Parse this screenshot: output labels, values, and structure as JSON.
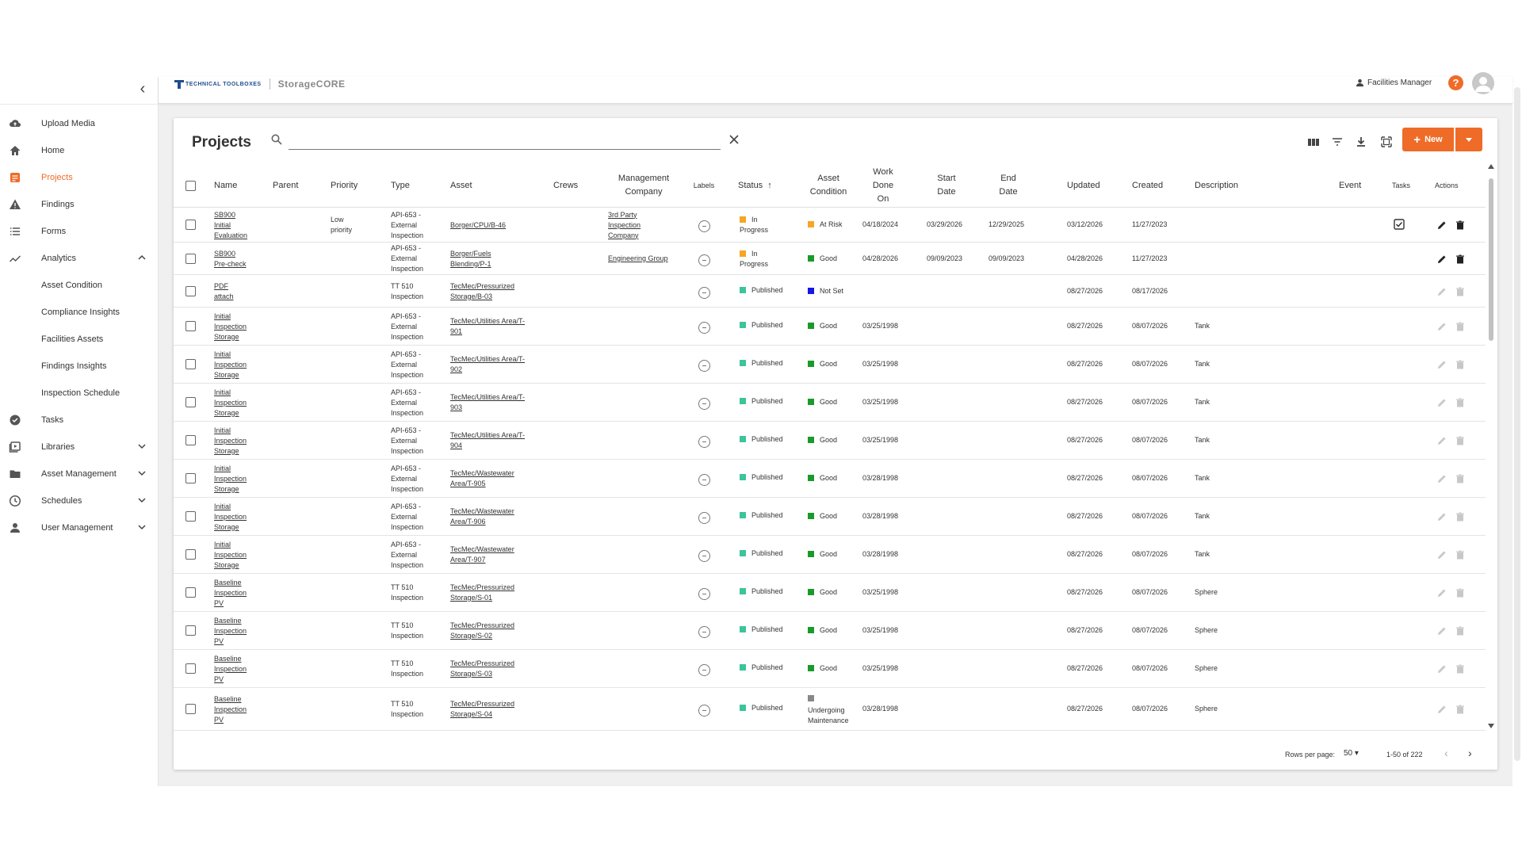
{
  "app": {
    "brand_mark": "TECHNICAL TOOLBOXES",
    "product": "StorageCORE"
  },
  "header": {
    "user_name": "Facilities Manager",
    "help_label": "?"
  },
  "sidebar": {
    "items": [
      {
        "label": "Upload Media",
        "icon": "cloud-upload-icon",
        "name": "upload-media"
      },
      {
        "label": "Home",
        "icon": "home-icon",
        "name": "home"
      },
      {
        "label": "Projects",
        "icon": "projects-icon",
        "name": "projects",
        "active": true
      },
      {
        "label": "Findings",
        "icon": "warning-icon",
        "name": "findings"
      },
      {
        "label": "Forms",
        "icon": "list-icon",
        "name": "forms"
      },
      {
        "label": "Analytics",
        "icon": "trend-icon",
        "name": "analytics",
        "expanded": true
      },
      {
        "label": "Asset Condition",
        "name": "asset-condition",
        "sub": true
      },
      {
        "label": "Compliance Insights",
        "name": "compliance-insights",
        "sub": true
      },
      {
        "label": "Facilities Assets",
        "name": "facilities-assets",
        "sub": true
      },
      {
        "label": "Findings Insights",
        "name": "findings-insights",
        "sub": true
      },
      {
        "label": "Inspection Schedule",
        "name": "inspection-schedule",
        "sub": true
      },
      {
        "label": "Tasks",
        "icon": "check-circle-icon",
        "name": "tasks"
      },
      {
        "label": "Libraries",
        "icon": "video-library-icon",
        "name": "libraries",
        "collapsible": true
      },
      {
        "label": "Asset Management",
        "icon": "folder-icon",
        "name": "asset-management",
        "collapsible": true
      },
      {
        "label": "Schedules",
        "icon": "clock-icon",
        "name": "schedules",
        "collapsible": true
      },
      {
        "label": "User Management",
        "icon": "person-icon",
        "name": "user-management",
        "collapsible": true
      }
    ]
  },
  "projects": {
    "title": "Projects",
    "search_placeholder": "",
    "new_label": "New",
    "columns": {
      "name": "Name",
      "parent": "Parent",
      "priority": "Priority",
      "type": "Type",
      "asset": "Asset",
      "crews": "Crews",
      "mgmt1": "Management",
      "mgmt2": "Company",
      "labels": "Labels",
      "status": "Status",
      "cond1": "Asset",
      "cond2": "Condition",
      "wdo1": "Work",
      "wdo2": "Done",
      "wdo3": "On",
      "start1": "Start",
      "start2": "Date",
      "end1": "End",
      "end2": "Date",
      "updated": "Updated",
      "created": "Created",
      "description": "Description",
      "event": "Event",
      "tasks": "Tasks",
      "actions": "Actions"
    },
    "rows": [
      {
        "name": [
          "SB900",
          "Initial",
          "Evaluation"
        ],
        "priority": [
          "Low",
          "priority"
        ],
        "type": [
          "API-653 -",
          "External",
          "Inspection"
        ],
        "asset": [
          "Borger/CPU/B-46"
        ],
        "mgmt": [
          "3rd Party",
          "Inspection",
          "Company"
        ],
        "status": "In",
        "status2": "Progress",
        "status_color": "#f5a623",
        "cond": "At Risk",
        "cond_color": "#f5a623",
        "work_done": "04/18/2024",
        "start": "03/29/2026",
        "end": "12/29/2025",
        "updated": "03/12/2026",
        "created": "11/27/2023",
        "description": "",
        "task_check": true,
        "actions_enabled": true
      },
      {
        "name": [
          "SB900",
          "Pre-check"
        ],
        "priority": [],
        "type": [
          "API-653 -",
          "External",
          "Inspection"
        ],
        "asset": [
          "Borger/Fuels",
          "Blending/P-1"
        ],
        "mgmt": [
          "Engineering Group"
        ],
        "status": "In",
        "status2": "Progress",
        "status_color": "#f5a623",
        "cond": "Good",
        "cond_color": "#1a9a2a",
        "work_done": "04/28/2026",
        "start": "09/09/2023",
        "end": "09/09/2023",
        "updated": "04/28/2026",
        "created": "11/27/2023",
        "description": "",
        "task_check": false,
        "actions_enabled": true
      },
      {
        "name": [
          "PDF",
          "attach"
        ],
        "priority": [],
        "type": [
          "TT 510",
          "Inspection"
        ],
        "asset": [
          "TecMec/Pressurized",
          "Storage/B-03"
        ],
        "mgmt": [],
        "status": "Published",
        "status2": "",
        "status_color": "#3cc49a",
        "cond": "Not Set",
        "cond_color": "#1616e6",
        "work_done": "",
        "start": "",
        "end": "",
        "updated": "08/27/2026",
        "created": "08/17/2026",
        "description": "",
        "task_check": false,
        "actions_enabled": false
      },
      {
        "name": [
          "Initial",
          "Inspection",
          "Storage"
        ],
        "priority": [],
        "type": [
          "API-653 -",
          "External",
          "Inspection"
        ],
        "asset": [
          "TecMec/Utilities Area/T-",
          "901"
        ],
        "mgmt": [],
        "status": "Published",
        "status2": "",
        "status_color": "#3cc49a",
        "cond": "Good",
        "cond_color": "#1a9a2a",
        "work_done": "03/25/1998",
        "start": "",
        "end": "",
        "updated": "08/27/2026",
        "created": "08/07/2026",
        "description": "Tank",
        "task_check": false,
        "actions_enabled": false
      },
      {
        "name": [
          "Initial",
          "Inspection",
          "Storage"
        ],
        "priority": [],
        "type": [
          "API-653 -",
          "External",
          "Inspection"
        ],
        "asset": [
          "TecMec/Utilities Area/T-",
          "902"
        ],
        "mgmt": [],
        "status": "Published",
        "status2": "",
        "status_color": "#3cc49a",
        "cond": "Good",
        "cond_color": "#1a9a2a",
        "work_done": "03/25/1998",
        "start": "",
        "end": "",
        "updated": "08/27/2026",
        "created": "08/07/2026",
        "description": "Tank",
        "task_check": false,
        "actions_enabled": false
      },
      {
        "name": [
          "Initial",
          "Inspection",
          "Storage"
        ],
        "priority": [],
        "type": [
          "API-653 -",
          "External",
          "Inspection"
        ],
        "asset": [
          "TecMec/Utilities Area/T-",
          "903"
        ],
        "mgmt": [],
        "status": "Published",
        "status2": "",
        "status_color": "#3cc49a",
        "cond": "Good",
        "cond_color": "#1a9a2a",
        "work_done": "03/25/1998",
        "start": "",
        "end": "",
        "updated": "08/27/2026",
        "created": "08/07/2026",
        "description": "Tank",
        "task_check": false,
        "actions_enabled": false
      },
      {
        "name": [
          "Initial",
          "Inspection",
          "Storage"
        ],
        "priority": [],
        "type": [
          "API-653 -",
          "External",
          "Inspection"
        ],
        "asset": [
          "TecMec/Utilities Area/T-",
          "904"
        ],
        "mgmt": [],
        "status": "Published",
        "status2": "",
        "status_color": "#3cc49a",
        "cond": "Good",
        "cond_color": "#1a9a2a",
        "work_done": "03/25/1998",
        "start": "",
        "end": "",
        "updated": "08/27/2026",
        "created": "08/07/2026",
        "description": "Tank",
        "task_check": false,
        "actions_enabled": false
      },
      {
        "name": [
          "Initial",
          "Inspection",
          "Storage"
        ],
        "priority": [],
        "type": [
          "API-653 -",
          "External",
          "Inspection"
        ],
        "asset": [
          "TecMec/Wastewater",
          "Area/T-905"
        ],
        "mgmt": [],
        "status": "Published",
        "status2": "",
        "status_color": "#3cc49a",
        "cond": "Good",
        "cond_color": "#1a9a2a",
        "work_done": "03/28/1998",
        "start": "",
        "end": "",
        "updated": "08/27/2026",
        "created": "08/07/2026",
        "description": "Tank",
        "task_check": false,
        "actions_enabled": false
      },
      {
        "name": [
          "Initial",
          "Inspection",
          "Storage"
        ],
        "priority": [],
        "type": [
          "API-653 -",
          "External",
          "Inspection"
        ],
        "asset": [
          "TecMec/Wastewater",
          "Area/T-906"
        ],
        "mgmt": [],
        "status": "Published",
        "status2": "",
        "status_color": "#3cc49a",
        "cond": "Good",
        "cond_color": "#1a9a2a",
        "work_done": "03/28/1998",
        "start": "",
        "end": "",
        "updated": "08/27/2026",
        "created": "08/07/2026",
        "description": "Tank",
        "task_check": false,
        "actions_enabled": false
      },
      {
        "name": [
          "Initial",
          "Inspection",
          "Storage"
        ],
        "priority": [],
        "type": [
          "API-653 -",
          "External",
          "Inspection"
        ],
        "asset": [
          "TecMec/Wastewater",
          "Area/T-907"
        ],
        "mgmt": [],
        "status": "Published",
        "status2": "",
        "status_color": "#3cc49a",
        "cond": "Good",
        "cond_color": "#1a9a2a",
        "work_done": "03/28/1998",
        "start": "",
        "end": "",
        "updated": "08/27/2026",
        "created": "08/07/2026",
        "description": "Tank",
        "task_check": false,
        "actions_enabled": false
      },
      {
        "name": [
          "Baseline",
          "Inspection",
          "PV"
        ],
        "priority": [],
        "type": [
          "TT 510",
          "Inspection"
        ],
        "asset": [
          "TecMec/Pressurized",
          "Storage/S-01"
        ],
        "mgmt": [],
        "status": "Published",
        "status2": "",
        "status_color": "#3cc49a",
        "cond": "Good",
        "cond_color": "#1a9a2a",
        "work_done": "03/25/1998",
        "start": "",
        "end": "",
        "updated": "08/27/2026",
        "created": "08/07/2026",
        "description": "Sphere",
        "task_check": false,
        "actions_enabled": false
      },
      {
        "name": [
          "Baseline",
          "Inspection",
          "PV"
        ],
        "priority": [],
        "type": [
          "TT 510",
          "Inspection"
        ],
        "asset": [
          "TecMec/Pressurized",
          "Storage/S-02"
        ],
        "mgmt": [],
        "status": "Published",
        "status2": "",
        "status_color": "#3cc49a",
        "cond": "Good",
        "cond_color": "#1a9a2a",
        "work_done": "03/25/1998",
        "start": "",
        "end": "",
        "updated": "08/27/2026",
        "created": "08/07/2026",
        "description": "Sphere",
        "task_check": false,
        "actions_enabled": false
      },
      {
        "name": [
          "Baseline",
          "Inspection",
          "PV"
        ],
        "priority": [],
        "type": [
          "TT 510",
          "Inspection"
        ],
        "asset": [
          "TecMec/Pressurized",
          "Storage/S-03"
        ],
        "mgmt": [],
        "status": "Published",
        "status2": "",
        "status_color": "#3cc49a",
        "cond": "Good",
        "cond_color": "#1a9a2a",
        "work_done": "03/25/1998",
        "start": "",
        "end": "",
        "updated": "08/27/2026",
        "created": "08/07/2026",
        "description": "Sphere",
        "task_check": false,
        "actions_enabled": false
      },
      {
        "name": [
          "Baseline",
          "Inspection",
          "PV"
        ],
        "priority": [],
        "type": [
          "TT 510",
          "Inspection"
        ],
        "asset": [
          "TecMec/Pressurized",
          "Storage/S-04"
        ],
        "mgmt": [],
        "status": "Published",
        "status2": "",
        "status_color": "#3cc49a",
        "cond": "Undergoing",
        "cond2": "Maintenance",
        "cond_color": "#888888",
        "work_done": "03/28/1998",
        "start": "",
        "end": "",
        "updated": "08/27/2026",
        "created": "08/07/2026",
        "description": "Sphere",
        "task_check": false,
        "actions_enabled": false
      }
    ],
    "footer": {
      "rows_per_page_label": "Rows per page:",
      "rows_per_page": "50",
      "range": "1-50 of 222"
    }
  }
}
